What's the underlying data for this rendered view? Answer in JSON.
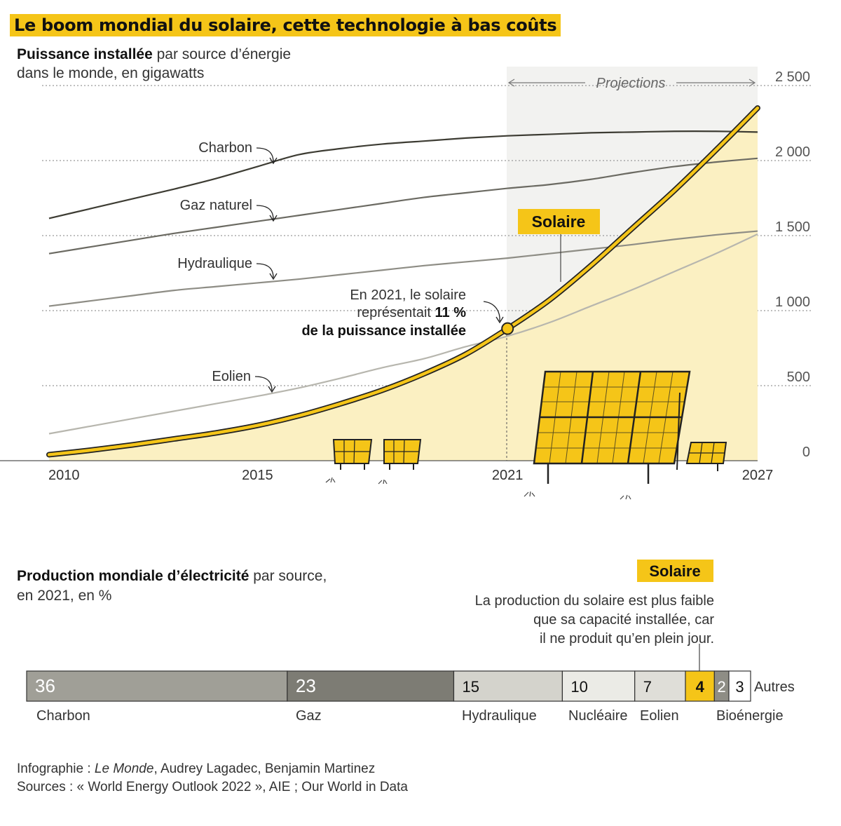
{
  "title": "Le boom mondial du solaire, cette technologie à bas coûts",
  "chart1": {
    "subtitle_bold": "Puissance installée",
    "subtitle_rest": " par source d’énergie",
    "subtitle_line2": "dans le monde, en gigawatts",
    "projections_label": "Projections",
    "x_ticks": [
      "2010",
      "2015",
      "2021",
      "2027"
    ],
    "y_ticks": [
      "0",
      "500",
      "1 000",
      "1 500",
      "2 000",
      "2 500"
    ],
    "annotation_line1": "En 2021, le solaire",
    "annotation_line2_a": "représentait ",
    "annotation_line2_b": "11 %",
    "annotation_line3": "de la puissance installée",
    "solaire_badge": "Solaire"
  },
  "chart_data": [
    {
      "type": "line",
      "xlabel": "",
      "ylabel": "",
      "x": [
        2010,
        2011,
        2012,
        2013,
        2014,
        2015,
        2016,
        2017,
        2018,
        2019,
        2020,
        2021,
        2022,
        2023,
        2024,
        2025,
        2026,
        2027
      ],
      "xlim": [
        2010,
        2027
      ],
      "ylim": [
        0,
        2500
      ],
      "projection_start": 2021,
      "series": [
        {
          "name": "Charbon",
          "color": "#3d3c33",
          "values": [
            1615,
            1680,
            1745,
            1810,
            1880,
            1960,
            2040,
            2080,
            2110,
            2130,
            2150,
            2165,
            2175,
            2185,
            2190,
            2195,
            2195,
            2190
          ]
        },
        {
          "name": "Gaz naturel",
          "color": "#6b6a62",
          "values": [
            1380,
            1425,
            1470,
            1515,
            1555,
            1595,
            1635,
            1675,
            1715,
            1755,
            1785,
            1815,
            1840,
            1875,
            1920,
            1960,
            1990,
            2015
          ]
        },
        {
          "name": "Hydraulique",
          "color": "#8e8d85",
          "values": [
            1030,
            1065,
            1100,
            1135,
            1160,
            1185,
            1210,
            1240,
            1270,
            1300,
            1325,
            1350,
            1380,
            1410,
            1440,
            1475,
            1505,
            1530
          ]
        },
        {
          "name": "Eolien",
          "color": "#b7b6ae",
          "values": [
            180,
            230,
            280,
            330,
            380,
            430,
            485,
            550,
            620,
            680,
            760,
            830,
            920,
            1030,
            1140,
            1260,
            1380,
            1510
          ]
        },
        {
          "name": "Solaire",
          "color": "#f5c518",
          "values": [
            40,
            70,
            105,
            145,
            185,
            235,
            300,
            380,
            470,
            580,
            710,
            880,
            1070,
            1300,
            1550,
            1800,
            2070,
            2350
          ]
        }
      ]
    },
    {
      "type": "bar",
      "stacked": true,
      "title": "",
      "categories": [
        "Charbon",
        "Gaz",
        "Hydraulique",
        "Nucléaire",
        "Eolien",
        "Solaire",
        "Bioénergie",
        "Autres"
      ],
      "values": [
        36,
        23,
        15,
        10,
        7,
        4,
        2,
        3
      ],
      "colors": [
        "#a09f97",
        "#7d7c74",
        "#d4d3cc",
        "#ebebe6",
        "#dfded8",
        "#f5c518",
        "#8e8d85",
        "#ffffff"
      ]
    }
  ],
  "chart2": {
    "subtitle_bold": "Production mondiale d’électricité",
    "subtitle_rest": " par source,",
    "subtitle_line2": "en 2021, en %",
    "solaire_badge": "Solaire",
    "note_lines": [
      "La production du solaire est plus faible",
      "que sa capacité installée, car",
      "il ne produit qu’en plein jour."
    ],
    "bar_labels": [
      "36",
      "23",
      "15",
      "10",
      "7",
      "4",
      "2",
      "3"
    ],
    "below_labels": [
      "Charbon",
      "Gaz",
      "Hydraulique",
      "Nucléaire",
      "Eolien",
      "Bioénergie"
    ],
    "autres_label": "Autres"
  },
  "footer": {
    "line1_prefix": "Infographie : ",
    "line1_italic": "Le Monde",
    "line1_rest": ", Audrey Lagadec, Benjamin Martinez",
    "line2": "Sources : « World Energy Outlook 2022 », AIE ; Our World in Data"
  }
}
